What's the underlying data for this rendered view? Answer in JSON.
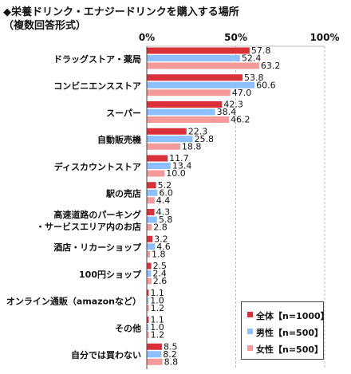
{
  "title_line1": "◆栄養ドリンク・エナジードリンクを購入する場所",
  "title_line2": "（複数回答形式）",
  "chart_data": {
    "type": "bar",
    "orientation": "horizontal",
    "xlim": [
      0,
      100
    ],
    "x_ticks": [
      "0%",
      "50%",
      "100%"
    ],
    "grid": true,
    "legend_position": "bottom-right",
    "categories": [
      [
        "ドラッグストア・薬局"
      ],
      [
        "コンビニエンスストア"
      ],
      [
        "スーパー"
      ],
      [
        "自動販売機"
      ],
      [
        "ディスカウントストア"
      ],
      [
        "駅の売店"
      ],
      [
        "高速道路のパーキング",
        "・サービスエリア内のお店"
      ],
      [
        "酒店・リカーショップ"
      ],
      [
        "100円ショップ"
      ],
      [
        "オンライン通販（amazonなど）"
      ],
      [
        "その他"
      ],
      [
        "自分では買わない"
      ]
    ],
    "series": [
      {
        "name": "全体【n=1000】",
        "color": "#d9303a",
        "values": [
          57.8,
          53.8,
          42.3,
          22.3,
          11.7,
          5.2,
          4.3,
          3.2,
          2.5,
          1.1,
          1.1,
          8.5
        ]
      },
      {
        "name": "男性【n=500】",
        "color": "#8ebfff",
        "values": [
          52.4,
          60.6,
          38.4,
          25.8,
          13.4,
          6.0,
          5.8,
          4.6,
          2.4,
          1.0,
          1.0,
          8.2
        ]
      },
      {
        "name": "女性【n=500】",
        "color": "#f49a9a",
        "values": [
          63.2,
          47.0,
          46.2,
          18.8,
          10.0,
          4.4,
          2.8,
          1.8,
          2.6,
          1.2,
          1.2,
          8.8
        ]
      }
    ]
  }
}
